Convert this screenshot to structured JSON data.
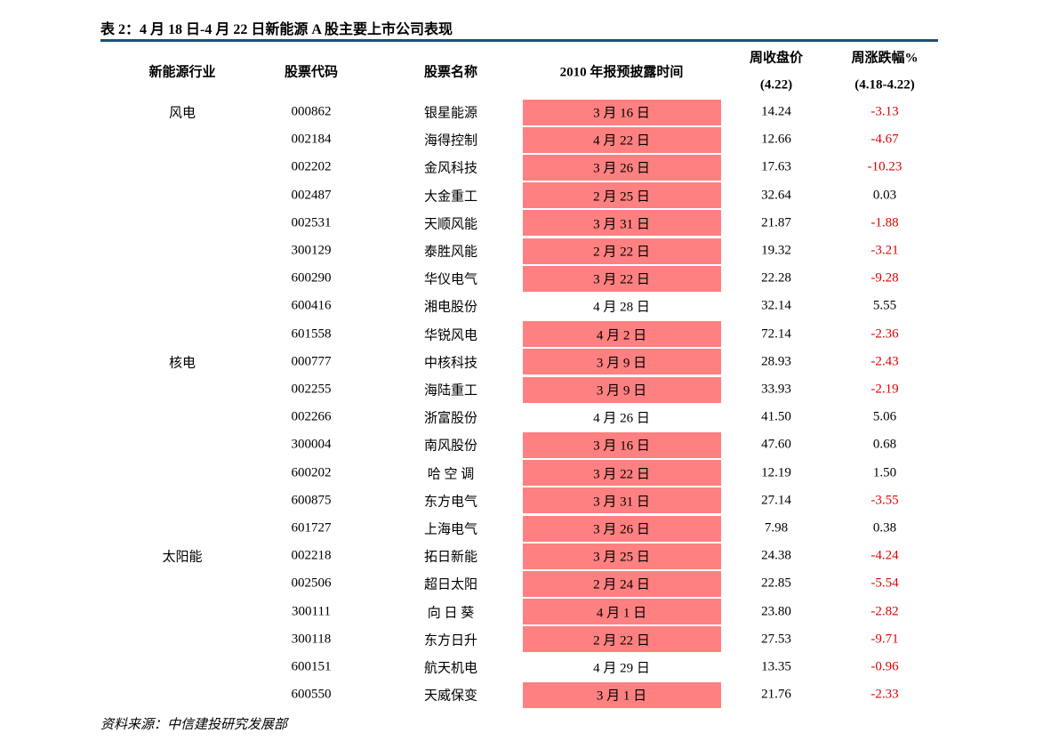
{
  "header": {
    "title": "表 2：4 月 18 日-4 月 22 日新能源 A 股主要上市公司表现"
  },
  "table": {
    "columns": [
      "新能源行业",
      "股票代码",
      "股票名称",
      "2010 年报预披露时间",
      [
        "周收盘价",
        "(4.22)"
      ],
      [
        "周涨跌幅%",
        "(4.18-4.22)"
      ]
    ],
    "rows": [
      {
        "sector": "风电",
        "code": "000862",
        "name": "银星能源",
        "date": "3 月 16 日",
        "highlight": true,
        "close": "14.24",
        "change": "-3.13"
      },
      {
        "code": "002184",
        "name": "海得控制",
        "date": "4 月 22 日",
        "highlight": true,
        "close": "12.66",
        "change": "-4.67"
      },
      {
        "code": "002202",
        "name": "金风科技",
        "date": "3 月 26 日",
        "highlight": true,
        "close": "17.63",
        "change": "-10.23"
      },
      {
        "code": "002487",
        "name": "大金重工",
        "date": "2 月 25 日",
        "highlight": true,
        "close": "32.64",
        "change": "0.03"
      },
      {
        "code": "002531",
        "name": "天顺风能",
        "date": "3 月 31 日",
        "highlight": true,
        "close": "21.87",
        "change": "-1.88"
      },
      {
        "code": "300129",
        "name": "泰胜风能",
        "date": "2 月 22 日",
        "highlight": true,
        "close": "19.32",
        "change": "-3.21"
      },
      {
        "code": "600290",
        "name": "华仪电气",
        "date": "3 月 22 日",
        "highlight": true,
        "close": "22.28",
        "change": "-9.28"
      },
      {
        "code": "600416",
        "name": "湘电股份",
        "date": "4 月 28 日",
        "highlight": false,
        "close": "32.14",
        "change": "5.55"
      },
      {
        "code": "601558",
        "name": "华锐风电",
        "date": "4 月 2 日",
        "highlight": true,
        "close": "72.14",
        "change": "-2.36"
      },
      {
        "sector": "核电",
        "code": "000777",
        "name": "中核科技",
        "date": "3 月 9 日",
        "highlight": true,
        "close": "28.93",
        "change": "-2.43"
      },
      {
        "code": "002255",
        "name": "海陆重工",
        "date": "3 月 9 日",
        "highlight": true,
        "close": "33.93",
        "change": "-2.19"
      },
      {
        "code": "002266",
        "name": "浙富股份",
        "date": "4 月 26 日",
        "highlight": false,
        "close": "41.50",
        "change": "5.06"
      },
      {
        "code": "300004",
        "name": "南风股份",
        "date": "3 月 16 日",
        "highlight": true,
        "close": "47.60",
        "change": "0.68"
      },
      {
        "code": "600202",
        "name": "哈 空 调",
        "date": "3 月 22 日",
        "highlight": true,
        "close": "12.19",
        "change": "1.50"
      },
      {
        "code": "600875",
        "name": "东方电气",
        "date": "3 月 31 日",
        "highlight": true,
        "close": "27.14",
        "change": "-3.55"
      },
      {
        "code": "601727",
        "name": "上海电气",
        "date": "3 月 26 日",
        "highlight": true,
        "close": "7.98",
        "change": "0.38"
      },
      {
        "sector": "太阳能",
        "code": "002218",
        "name": "拓日新能",
        "date": "3 月 25 日",
        "highlight": true,
        "close": "24.38",
        "change": "-4.24"
      },
      {
        "code": "002506",
        "name": "超日太阳",
        "date": "2 月 24 日",
        "highlight": true,
        "close": "22.85",
        "change": "-5.54"
      },
      {
        "code": "300111",
        "name": "向 日 葵",
        "date": "4 月 1 日",
        "highlight": true,
        "close": "23.80",
        "change": "-2.82"
      },
      {
        "code": "300118",
        "name": "东方日升",
        "date": "2 月 22 日",
        "highlight": true,
        "close": "27.53",
        "change": "-9.71"
      },
      {
        "code": "600151",
        "name": "航天机电",
        "date": "4 月 29 日",
        "highlight": false,
        "close": "13.35",
        "change": "-0.96"
      },
      {
        "code": "600550",
        "name": "天威保变",
        "date": "3 月 1 日",
        "highlight": true,
        "close": "21.76",
        "change": "-2.33"
      }
    ]
  },
  "footer": {
    "source": "资料来源：中信建投研究发展部"
  }
}
